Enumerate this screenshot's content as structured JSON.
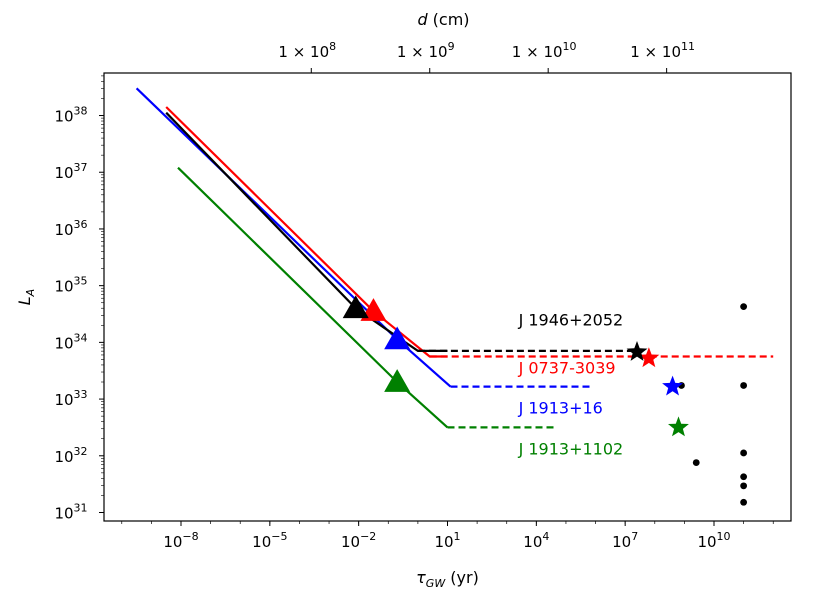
{
  "chart_data": {
    "type": "line",
    "title": "",
    "xlabel": "τ_GW (yr)",
    "ylabel": "L_A",
    "top_xlabel": "d (cm)",
    "xscale": "log",
    "yscale": "log",
    "xlim_log10": [
      -10.6,
      12.6
    ],
    "ylim_log10": [
      30.85,
      38.75
    ],
    "x_ticks": [
      {
        "exp": -8,
        "label": "10",
        "sup": "−8"
      },
      {
        "exp": -5,
        "label": "10",
        "sup": "−5"
      },
      {
        "exp": -2,
        "label": "10",
        "sup": "−2"
      },
      {
        "exp": 1,
        "label": "10",
        "sup": "1"
      },
      {
        "exp": 4,
        "label": "10",
        "sup": "4"
      },
      {
        "exp": 7,
        "label": "10",
        "sup": "7"
      },
      {
        "exp": 10,
        "label": "10",
        "sup": "10"
      }
    ],
    "y_ticks": [
      {
        "exp": 31,
        "label": "10",
        "sup": "31"
      },
      {
        "exp": 32,
        "label": "10",
        "sup": "32"
      },
      {
        "exp": 33,
        "label": "10",
        "sup": "33"
      },
      {
        "exp": 34,
        "label": "10",
        "sup": "34"
      },
      {
        "exp": 35,
        "label": "10",
        "sup": "35"
      },
      {
        "exp": 36,
        "label": "10",
        "sup": "36"
      },
      {
        "exp": 37,
        "label": "10",
        "sup": "37"
      },
      {
        "exp": 38,
        "label": "10",
        "sup": "38"
      }
    ],
    "top_ticks": [
      {
        "tau_log10": -3.6,
        "label": "1 × 10",
        "sup": "8"
      },
      {
        "tau_log10": 0.4,
        "label": "1 × 10",
        "sup": "9"
      },
      {
        "tau_log10": 4.4,
        "label": "1 × 10",
        "sup": "10"
      },
      {
        "tau_log10": 8.4,
        "label": "1 × 10",
        "sup": "11"
      }
    ],
    "series": [
      {
        "name": "J 1946+2052",
        "color": "#000000",
        "solid_log": [
          [
            -8.5,
            38.05
          ],
          [
            -2.1,
            34.6
          ],
          [
            0.0,
            33.85
          ],
          [
            1.0,
            33.85
          ]
        ],
        "dashed_log": [
          [
            0.0,
            33.85
          ],
          [
            7.6,
            33.85
          ]
        ],
        "triangle_log": [
          -2.1,
          34.6
        ],
        "star_log": [
          7.4,
          33.83
        ],
        "label_pos_log": [
          3.4,
          34.3
        ]
      },
      {
        "name": "J 0737-3039",
        "color": "#ff0000",
        "solid_log": [
          [
            -8.5,
            38.15
          ],
          [
            -1.5,
            34.55
          ],
          [
            0.4,
            33.75
          ],
          [
            1.0,
            33.75
          ]
        ],
        "dashed_log": [
          [
            0.4,
            33.75
          ],
          [
            12.0,
            33.75
          ]
        ],
        "triangle_log": [
          -1.5,
          34.55
        ],
        "star_log": [
          7.8,
          33.72
        ],
        "label_pos_log": [
          3.4,
          33.45
        ]
      },
      {
        "name": "J 1913+16",
        "color": "#0000ff",
        "solid_log": [
          [
            -9.5,
            38.48
          ],
          [
            -0.7,
            34.05
          ],
          [
            1.1,
            33.22
          ]
        ],
        "dashed_log": [
          [
            1.1,
            33.22
          ],
          [
            5.9,
            33.22
          ]
        ],
        "triangle_log": [
          -0.7,
          34.05
        ],
        "star_log": [
          8.6,
          33.22
        ],
        "label_pos_log": [
          3.4,
          32.75
        ]
      },
      {
        "name": "J 1913+1102",
        "color": "#008000",
        "solid_log": [
          [
            -8.1,
            37.08
          ],
          [
            -0.7,
            33.3
          ],
          [
            1.0,
            32.5
          ]
        ],
        "dashed_log": [
          [
            1.0,
            32.5
          ],
          [
            4.6,
            32.5
          ]
        ],
        "triangle_log": [
          -0.7,
          33.3
        ],
        "star_log": [
          8.8,
          32.5
        ],
        "label_pos_log": [
          3.4,
          32.02
        ]
      }
    ],
    "black_dots_log": [
      [
        11.0,
        34.63
      ],
      [
        11.0,
        33.24
      ],
      [
        8.9,
        33.24
      ],
      [
        9.4,
        31.88
      ],
      [
        11.0,
        32.05
      ],
      [
        11.0,
        31.63
      ],
      [
        11.0,
        31.47
      ],
      [
        11.0,
        31.18
      ]
    ]
  }
}
